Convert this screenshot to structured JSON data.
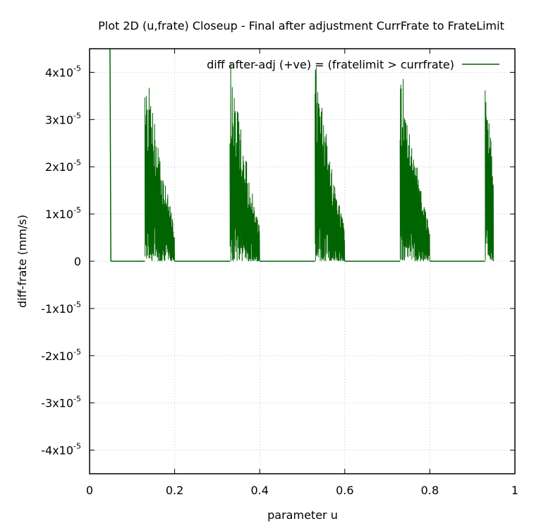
{
  "chart_data": {
    "type": "line",
    "title": "Plot 2D (u,frate) Closeup - Final after adjustment CurrFrate to FrateLimit",
    "xlabel": "parameter u",
    "ylabel": "diff-frate (mm/s)",
    "xlim": [
      0,
      1
    ],
    "ylim": [
      -4.5e-05,
      4.5e-05
    ],
    "x_ticks": [
      {
        "value": 0,
        "label": "0"
      },
      {
        "value": 0.2,
        "label": "0.2"
      },
      {
        "value": 0.4,
        "label": "0.4"
      },
      {
        "value": 0.6,
        "label": "0.6"
      },
      {
        "value": 0.8,
        "label": "0.8"
      },
      {
        "value": 1,
        "label": "1"
      }
    ],
    "y_ticks": [
      {
        "value": 4e-05,
        "base": "4x10",
        "exp": "-5"
      },
      {
        "value": 3e-05,
        "base": "3x10",
        "exp": "-5"
      },
      {
        "value": 2e-05,
        "base": "2x10",
        "exp": "-5"
      },
      {
        "value": 1e-05,
        "base": "1x10",
        "exp": "-5"
      },
      {
        "value": 0,
        "base": "0",
        "exp": ""
      },
      {
        "value": -1e-05,
        "base": "-1x10",
        "exp": "-5"
      },
      {
        "value": -2e-05,
        "base": "-2x10",
        "exp": "-5"
      },
      {
        "value": -3e-05,
        "base": "-3x10",
        "exp": "-5"
      },
      {
        "value": -4e-05,
        "base": "-4x10",
        "exp": "-5"
      }
    ],
    "grid": true,
    "legend_position": "top-right",
    "series": [
      {
        "name": "diff after-adj (+ve) = (fratelimit > currfrate)",
        "color": "#006400",
        "lead": {
          "x": [
            0.048,
            0.05
          ],
          "y": [
            4.5e-05,
            0
          ]
        },
        "zero_segments": [
          [
            0.05,
            0.13
          ],
          [
            0.2,
            0.33
          ],
          [
            0.4,
            0.53
          ],
          [
            0.6,
            0.73
          ],
          [
            0.8,
            0.93
          ]
        ],
        "bursts": [
          {
            "x_start": 0.13,
            "x_end": 0.2,
            "peak": 4.5e-05,
            "tail": 7e-06,
            "floor": 0
          },
          {
            "x_start": 0.33,
            "x_end": 0.4,
            "peak": 4.5e-05,
            "tail": 7e-06,
            "floor": 0
          },
          {
            "x_start": 0.53,
            "x_end": 0.6,
            "peak": 4.5e-05,
            "tail": 7e-06,
            "floor": 0
          },
          {
            "x_start": 0.73,
            "x_end": 0.8,
            "peak": 4.5e-05,
            "tail": 7e-06,
            "floor": 0
          },
          {
            "x_start": 0.93,
            "x_end": 0.95,
            "peak": 4.5e-05,
            "tail": 2e-05,
            "floor": 0
          }
        ]
      }
    ]
  }
}
